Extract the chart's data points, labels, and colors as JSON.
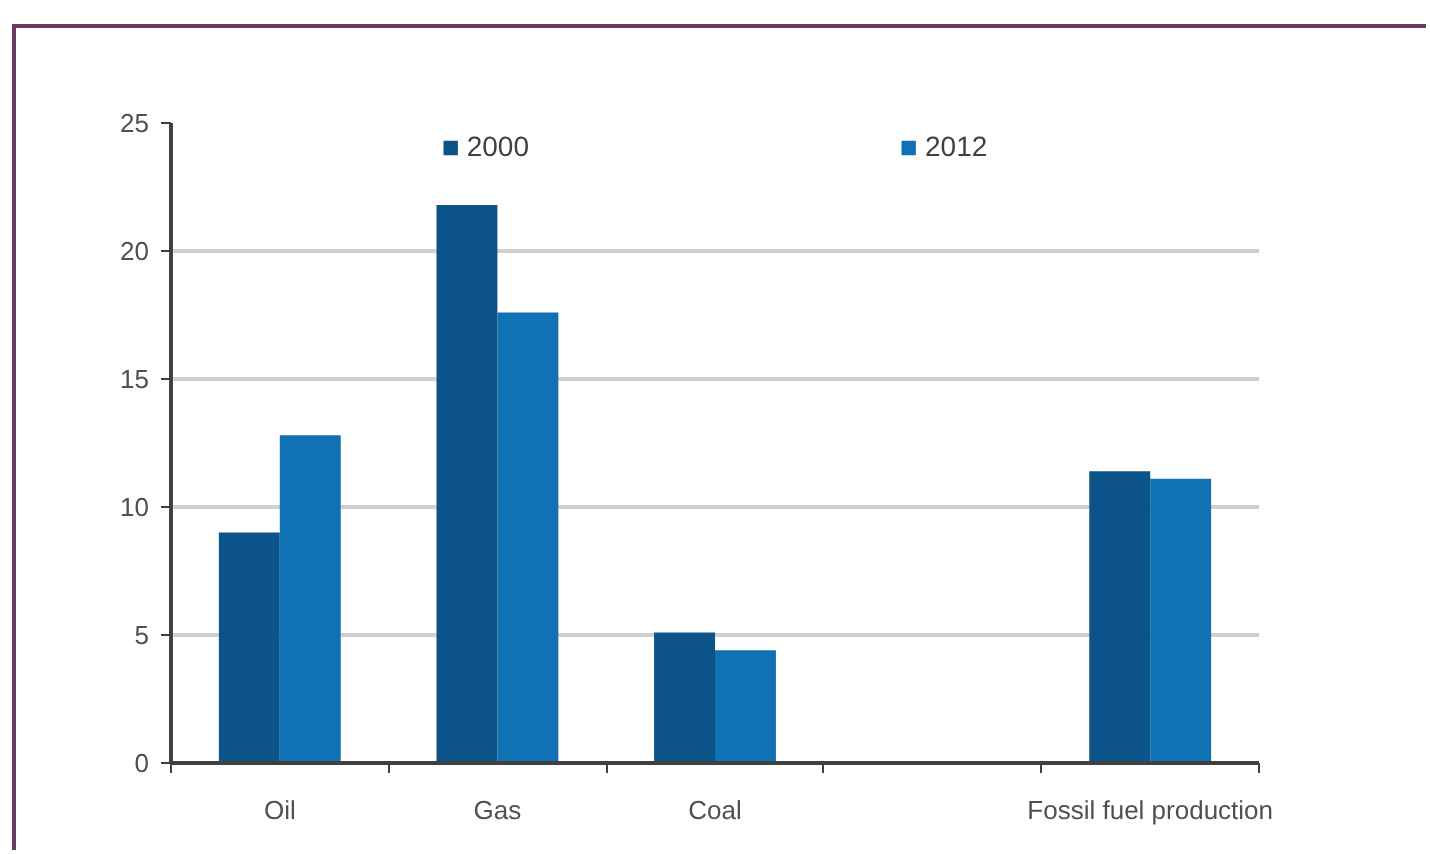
{
  "chart_data": {
    "type": "bar",
    "categories": [
      "Oil",
      "Gas",
      "Coal",
      null,
      "Fossil fuel production"
    ],
    "series": [
      {
        "name": "2000",
        "color": "#0c5389",
        "values": [
          9.0,
          21.8,
          5.1,
          null,
          11.4
        ]
      },
      {
        "name": "2012",
        "color": "#1171b5",
        "values": [
          12.8,
          17.6,
          4.4,
          null,
          11.1
        ]
      }
    ],
    "ylim": [
      0,
      25
    ],
    "yticks": [
      0,
      5,
      10,
      15,
      20,
      25
    ],
    "grid": "y",
    "legend": "top"
  }
}
